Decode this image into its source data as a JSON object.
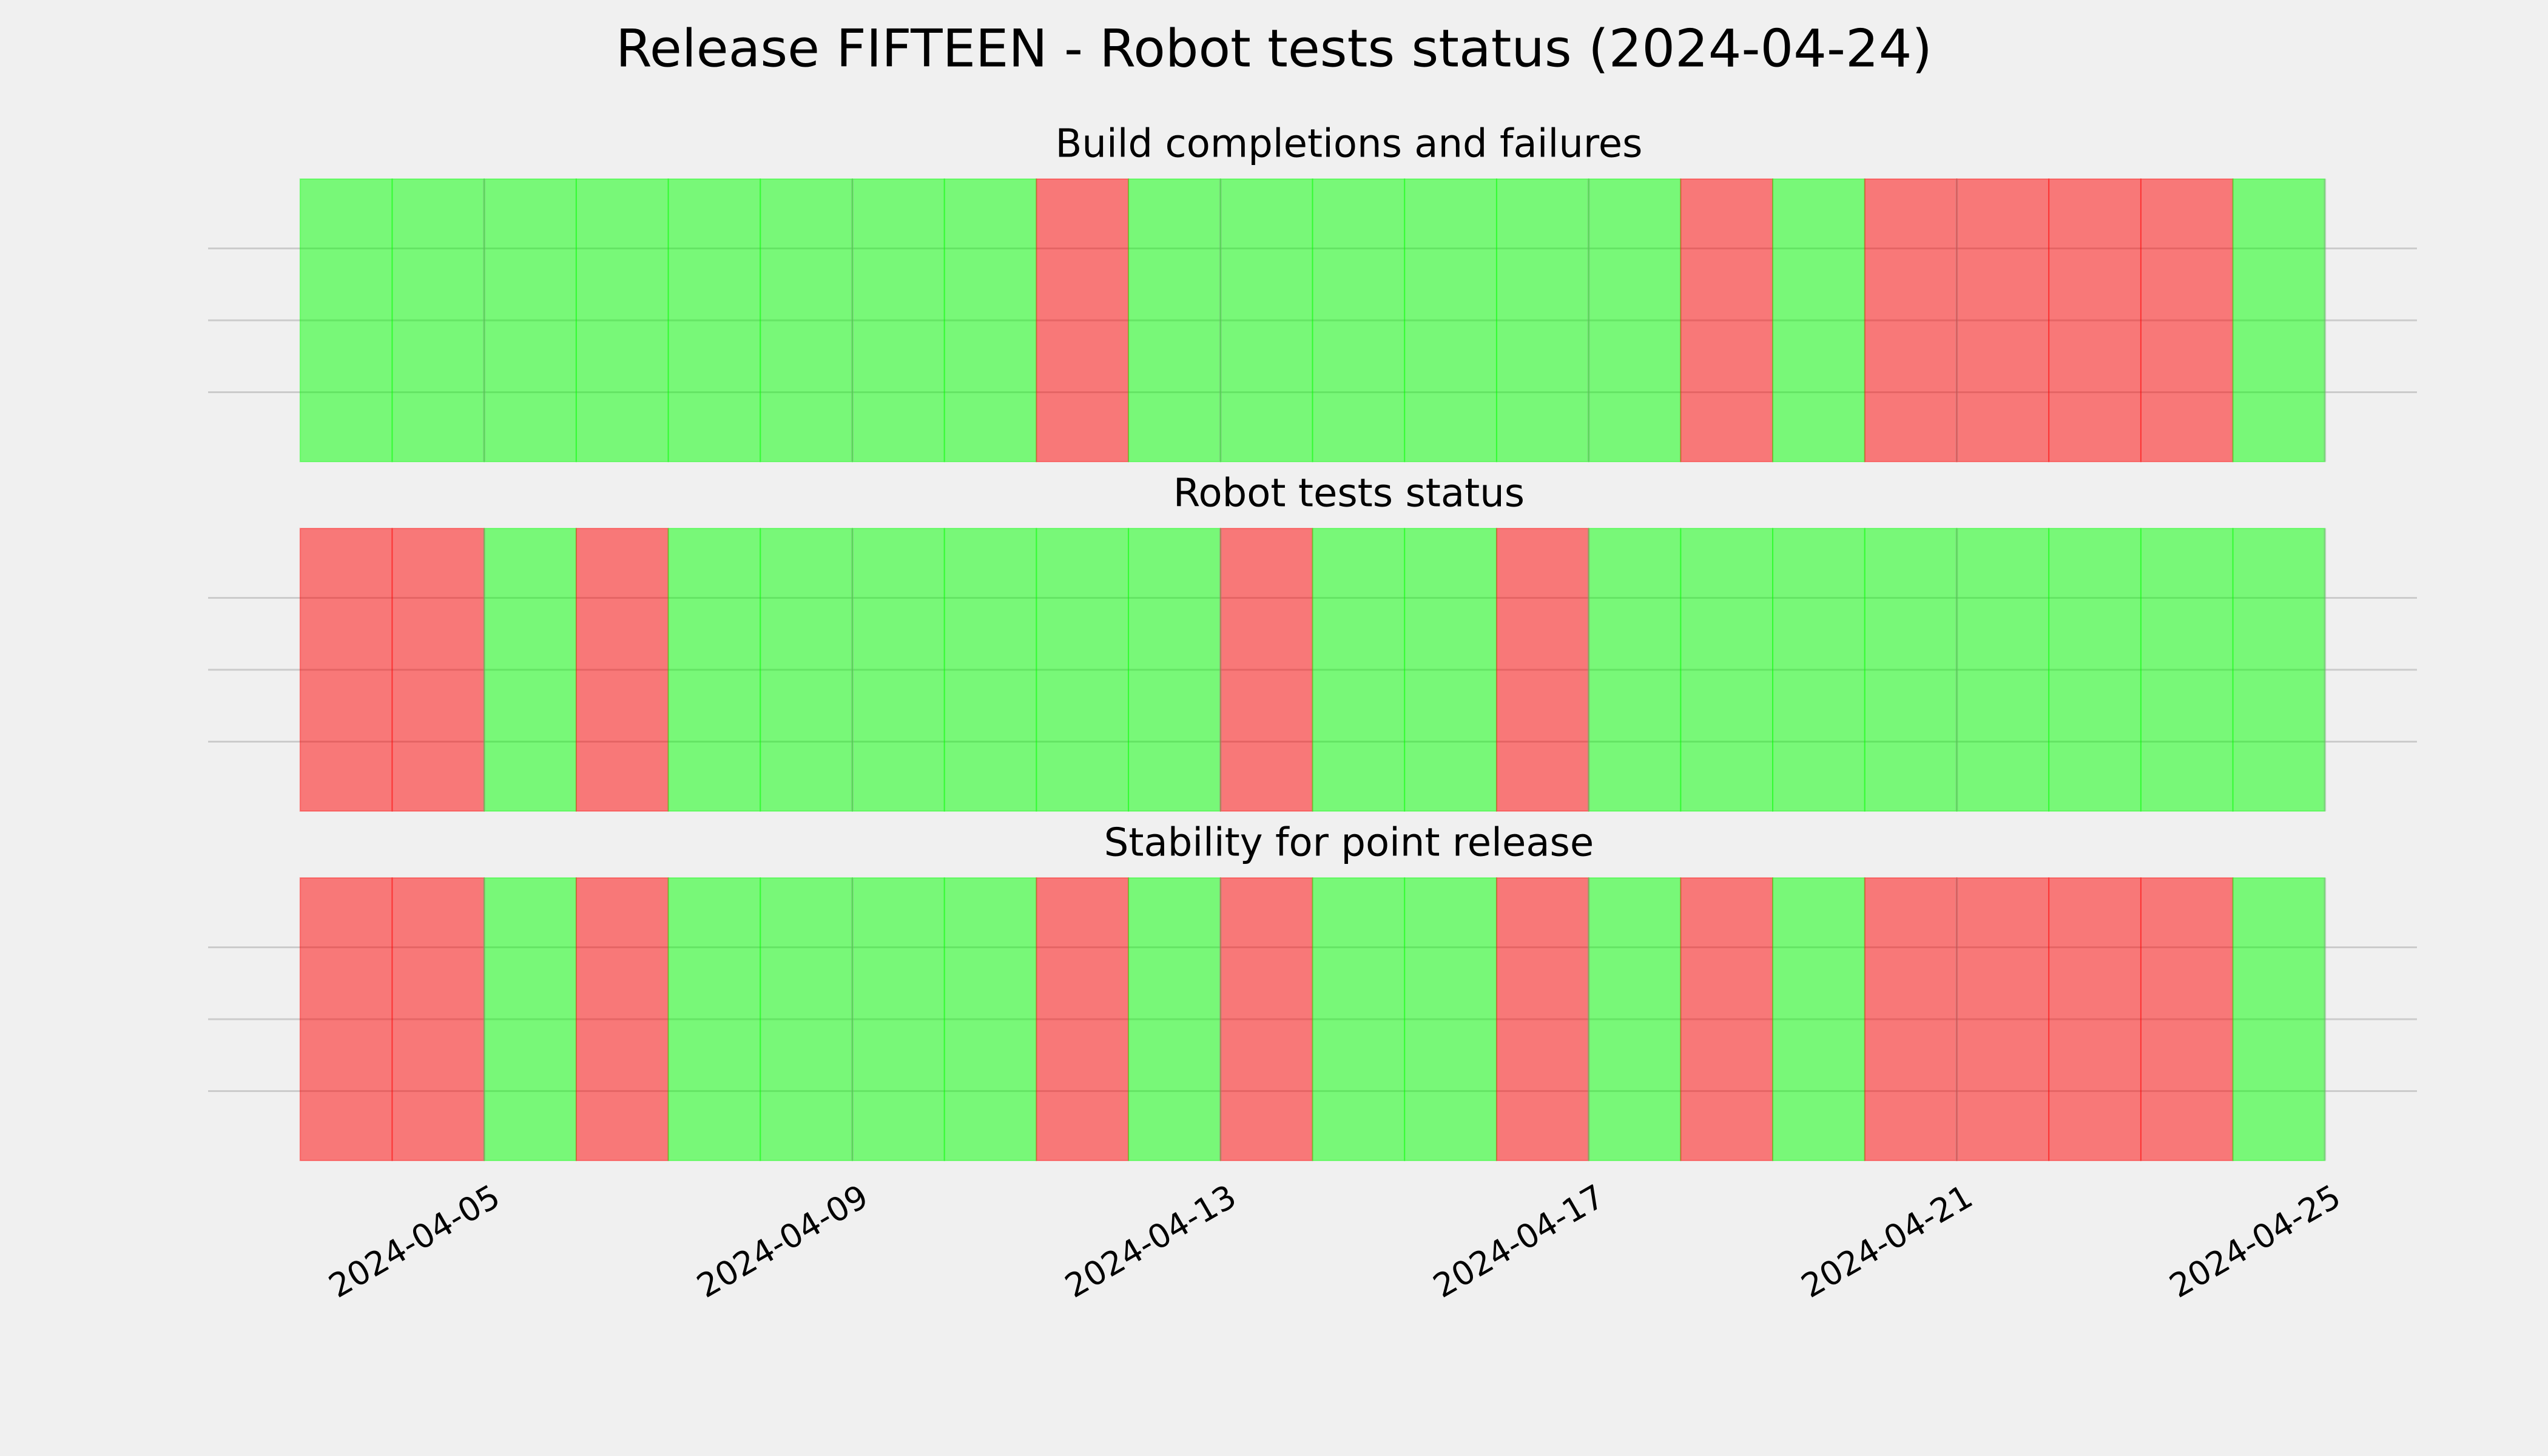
{
  "title": "Release FIFTEEN - Robot tests status (2024-04-24)",
  "chart_data": [
    {
      "type": "timeline",
      "title": "Build completions and failures",
      "x": [
        "2024-04-03",
        "2024-04-04",
        "2024-04-05",
        "2024-04-06",
        "2024-04-07",
        "2024-04-08",
        "2024-04-09",
        "2024-04-10",
        "2024-04-11",
        "2024-04-12",
        "2024-04-13",
        "2024-04-14",
        "2024-04-15",
        "2024-04-16",
        "2024-04-17",
        "2024-04-18",
        "2024-04-19",
        "2024-04-20",
        "2024-04-21",
        "2024-04-22",
        "2024-04-23",
        "2024-04-24"
      ],
      "colors": [
        "#00ff00",
        "#00ff00",
        "#00ff00",
        "#00ff00",
        "#00ff00",
        "#00ff00",
        "#00ff00",
        "#00ff00",
        "#ff0000",
        "#00ff00",
        "#00ff00",
        "#00ff00",
        "#00ff00",
        "#00ff00",
        "#00ff00",
        "#ff0000",
        "#00ff00",
        "#ff0000",
        "#ff0000",
        "#ff0000",
        "#ff0000",
        "#00ff00"
      ],
      "xlim": [
        "2024-04-02",
        "2024-04-26"
      ],
      "grid": true
    },
    {
      "type": "timeline",
      "title": "Robot tests status",
      "x": [
        "2024-04-03",
        "2024-04-04",
        "2024-04-05",
        "2024-04-06",
        "2024-04-07",
        "2024-04-08",
        "2024-04-09",
        "2024-04-10",
        "2024-04-11",
        "2024-04-12",
        "2024-04-13",
        "2024-04-14",
        "2024-04-15",
        "2024-04-16",
        "2024-04-17",
        "2024-04-18",
        "2024-04-19",
        "2024-04-20",
        "2024-04-21",
        "2024-04-22",
        "2024-04-23",
        "2024-04-24"
      ],
      "colors": [
        "#ff0000",
        "#ff0000",
        "#00ff00",
        "#ff0000",
        "#00ff00",
        "#00ff00",
        "#00ff00",
        "#00ff00",
        "#00ff00",
        "#00ff00",
        "#ff0000",
        "#00ff00",
        "#00ff00",
        "#ff0000",
        "#00ff00",
        "#00ff00",
        "#00ff00",
        "#00ff00",
        "#00ff00",
        "#00ff00",
        "#00ff00",
        "#00ff00"
      ],
      "xlim": [
        "2024-04-02",
        "2024-04-26"
      ],
      "grid": true
    },
    {
      "type": "timeline",
      "title": "Stability for point release",
      "x": [
        "2024-04-03",
        "2024-04-04",
        "2024-04-05",
        "2024-04-06",
        "2024-04-07",
        "2024-04-08",
        "2024-04-09",
        "2024-04-10",
        "2024-04-11",
        "2024-04-12",
        "2024-04-13",
        "2024-04-14",
        "2024-04-15",
        "2024-04-16",
        "2024-04-17",
        "2024-04-18",
        "2024-04-19",
        "2024-04-20",
        "2024-04-21",
        "2024-04-22",
        "2024-04-23",
        "2024-04-24"
      ],
      "colors": [
        "#ff0000",
        "#ff0000",
        "#00ff00",
        "#ff0000",
        "#00ff00",
        "#00ff00",
        "#00ff00",
        "#00ff00",
        "#ff0000",
        "#00ff00",
        "#ff0000",
        "#00ff00",
        "#00ff00",
        "#ff0000",
        "#00ff00",
        "#ff0000",
        "#00ff00",
        "#ff0000",
        "#ff0000",
        "#ff0000",
        "#ff0000",
        "#00ff00"
      ],
      "xlim": [
        "2024-04-02",
        "2024-04-26"
      ],
      "xticks": [
        "2024-04-05",
        "2024-04-09",
        "2024-04-13",
        "2024-04-17",
        "2024-04-21",
        "2024-04-25"
      ],
      "grid": true
    }
  ]
}
